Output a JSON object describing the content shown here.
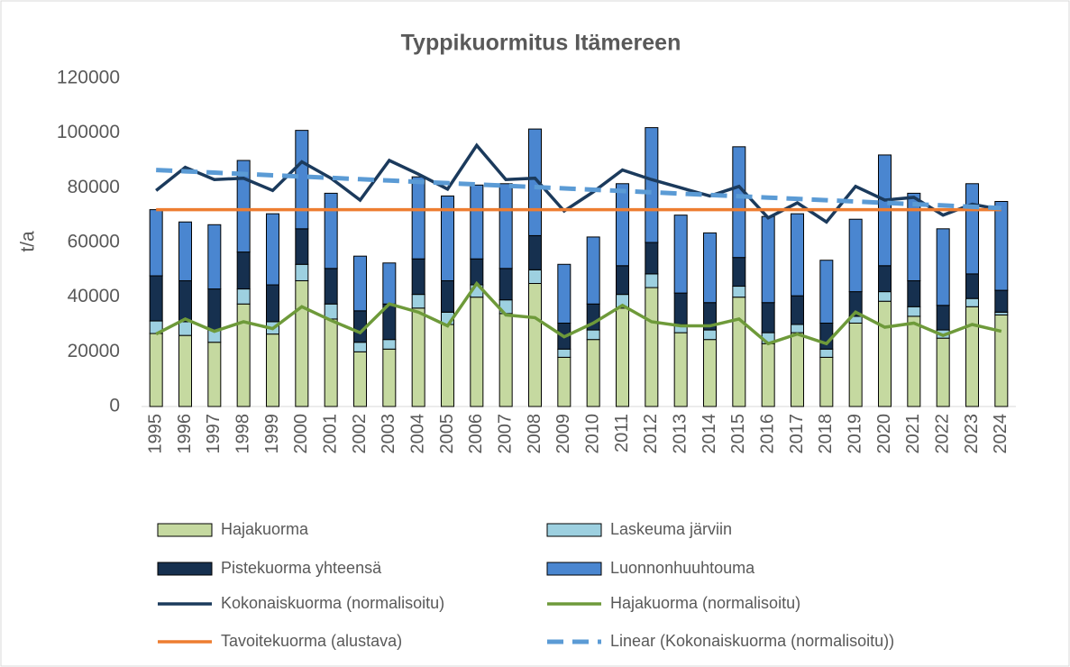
{
  "chart_data": {
    "type": "bar",
    "stacked": true,
    "title": "Typpikuormitus Itämereen",
    "y_label": "t/a",
    "categories": [
      "1995",
      "1996",
      "1997",
      "1998",
      "1999",
      "2000",
      "2001",
      "2002",
      "2003",
      "2004",
      "2005",
      "2006",
      "2007",
      "2008",
      "2009",
      "2010",
      "2011",
      "2012",
      "2013",
      "2014",
      "2015",
      "2016",
      "2017",
      "2018",
      "2019",
      "2020",
      "2021",
      "2022",
      "2023",
      "2024"
    ],
    "ylim": [
      0,
      120000
    ],
    "yticks": [
      0,
      20000,
      40000,
      60000,
      80000,
      100000,
      120000
    ],
    "grid": false,
    "series": [
      {
        "name": "Hajakuorma",
        "type": "bar",
        "color": "#c5d9a0",
        "values": [
          26700,
          26000,
          23500,
          37500,
          26500,
          46000,
          32000,
          20000,
          21000,
          36000,
          30000,
          40000,
          34000,
          45000,
          18000,
          24500,
          36000,
          43500,
          27000,
          24500,
          40000,
          23000,
          27000,
          18000,
          30500,
          38500,
          33000,
          25000,
          36500,
          33500
        ]
      },
      {
        "name": "Laskeuma järviin",
        "type": "bar",
        "color": "#9dd0e0",
        "values": [
          4600,
          5000,
          4500,
          5500,
          4500,
          6000,
          5500,
          3500,
          3500,
          5000,
          4500,
          4500,
          5000,
          5000,
          3000,
          3500,
          5000,
          5000,
          3000,
          3500,
          4000,
          4000,
          3000,
          3000,
          2500,
          3500,
          3500,
          3000,
          3000,
          1000
        ]
      },
      {
        "name": "Pistekuorma yhteensä",
        "type": "bar",
        "color": "#16304f",
        "values": [
          16500,
          15000,
          15000,
          13500,
          13500,
          13000,
          13000,
          11500,
          13000,
          13000,
          11500,
          9500,
          11500,
          12500,
          9500,
          9500,
          10500,
          11500,
          11500,
          10000,
          10500,
          11000,
          10500,
          9500,
          9000,
          9500,
          9500,
          9000,
          9000,
          8000
        ]
      },
      {
        "name": "Luonnonhuuhtouma",
        "type": "bar",
        "color": "#4a86d0",
        "values": [
          24200,
          21500,
          23500,
          33500,
          26000,
          36000,
          27500,
          20000,
          15000,
          30000,
          31000,
          27000,
          31000,
          39000,
          21500,
          24500,
          30000,
          42000,
          28500,
          25500,
          40500,
          31500,
          30000,
          23000,
          26500,
          40500,
          32000,
          28000,
          33000,
          32500
        ]
      },
      {
        "name": "Kokonaiskuorma (normalisoitu)",
        "type": "line",
        "color": "#1b3a5c",
        "values": [
          79000,
          87500,
          83000,
          83500,
          79000,
          89500,
          83500,
          75500,
          90000,
          85000,
          79500,
          95500,
          83000,
          83500,
          71500,
          78500,
          86500,
          83000,
          80000,
          77000,
          80500,
          69000,
          74500,
          67500,
          80500,
          75500,
          76500,
          70000,
          74000,
          72000
        ]
      },
      {
        "name": "Hajakuorma (normalisoitu)",
        "type": "line",
        "color": "#6e9a3a",
        "values": [
          26500,
          32000,
          27500,
          31000,
          28500,
          36500,
          31500,
          27000,
          37500,
          34500,
          29500,
          45000,
          33500,
          32500,
          25500,
          30500,
          37000,
          31000,
          29500,
          29500,
          32000,
          23000,
          26500,
          23000,
          34500,
          29000,
          30500,
          26000,
          30000,
          27500
        ]
      },
      {
        "name": "Tavoitekuorma (alustava)",
        "type": "line",
        "color": "#ed7d31",
        "values": [
          72000,
          72000,
          72000,
          72000,
          72000,
          72000,
          72000,
          72000,
          72000,
          72000,
          72000,
          72000,
          72000,
          72000,
          72000,
          72000,
          72000,
          72000,
          72000,
          72000,
          72000,
          72000,
          72000,
          72000,
          72000,
          72000,
          72000,
          72000,
          72000,
          72000
        ]
      },
      {
        "name": "Linear (Kokonaiskuorma (normalisoitu))",
        "type": "line",
        "dashed": true,
        "color": "#5b9bd5",
        "values": [
          86500,
          86020,
          85540,
          85060,
          84580,
          84100,
          83620,
          83140,
          82660,
          82180,
          81700,
          81220,
          80740,
          80260,
          79780,
          79300,
          78820,
          78340,
          77860,
          77380,
          76900,
          76420,
          75940,
          75460,
          74980,
          74500,
          74020,
          73540,
          73060,
          72580
        ]
      }
    ]
  }
}
